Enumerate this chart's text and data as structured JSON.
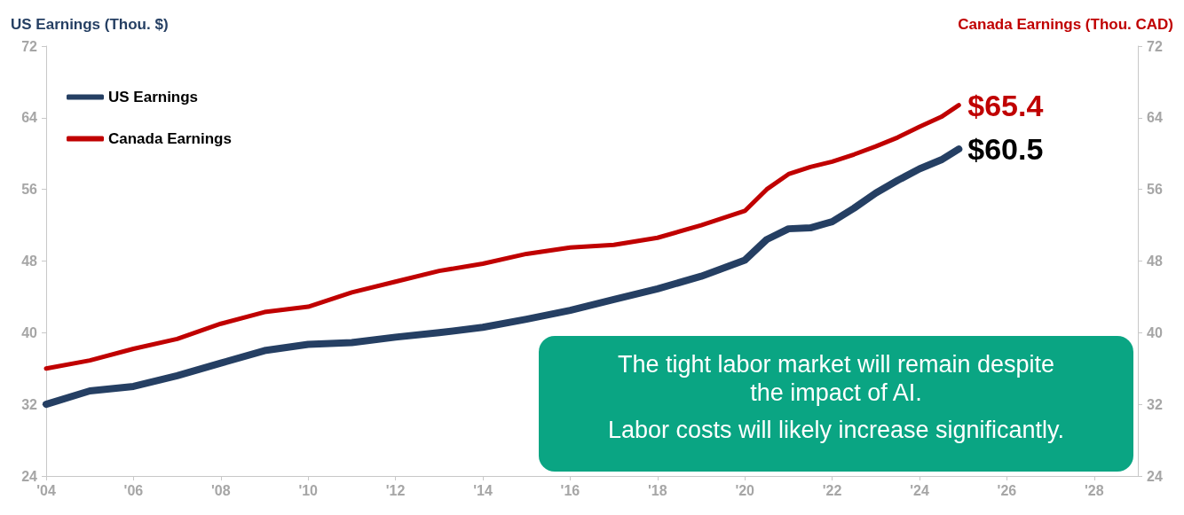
{
  "chart_data": {
    "type": "line",
    "ylabel": "US Earnings (Thou. $)",
    "y2label": "Canada Earnings (Thou. CAD)",
    "x": [
      2004,
      2005,
      2006,
      2007,
      2008,
      2009,
      2010,
      2011,
      2012,
      2013,
      2014,
      2015,
      2016,
      2017,
      2018,
      2019,
      2020,
      2020.5,
      2021,
      2021.5,
      2022,
      2022.5,
      2023,
      2023.5,
      2024,
      2024.5,
      2024.9
    ],
    "series": [
      {
        "name": "US Earnings",
        "color": "#253f63",
        "values": [
          32.0,
          33.5,
          34.0,
          35.2,
          36.6,
          38.0,
          38.7,
          38.9,
          39.5,
          40.0,
          40.6,
          41.5,
          42.5,
          43.7,
          44.9,
          46.3,
          48.1,
          50.4,
          51.6,
          51.7,
          52.4,
          53.9,
          55.6,
          57.0,
          58.3,
          59.3,
          60.5
        ],
        "value_labels": [
          null,
          null,
          null,
          null,
          null,
          null,
          null,
          null,
          null,
          null,
          null,
          null,
          null,
          null,
          null,
          null,
          null,
          null,
          null,
          null,
          null,
          null,
          null,
          null,
          null,
          null,
          "$60.5"
        ]
      },
      {
        "name": "Canada Earnings",
        "color": "#c00000",
        "axis": "y2",
        "values": [
          36.0,
          36.9,
          38.2,
          39.3,
          41.0,
          42.3,
          42.9,
          44.5,
          45.7,
          46.9,
          47.7,
          48.8,
          49.5,
          49.8,
          50.6,
          52.0,
          53.6,
          56.0,
          57.7,
          58.5,
          59.1,
          59.9,
          60.8,
          61.8,
          63.0,
          64.1,
          65.4
        ],
        "value_labels": [
          null,
          null,
          null,
          null,
          null,
          null,
          null,
          null,
          null,
          null,
          null,
          null,
          null,
          null,
          null,
          null,
          null,
          null,
          null,
          null,
          null,
          null,
          null,
          null,
          null,
          null,
          "$65.4"
        ]
      }
    ],
    "xlim": [
      2004,
      2029
    ],
    "xticks": [
      {
        "value": 2004,
        "label": "'04"
      },
      {
        "value": 2006,
        "label": "'06"
      },
      {
        "value": 2008,
        "label": "'08"
      },
      {
        "value": 2010,
        "label": "'10"
      },
      {
        "value": 2012,
        "label": "'12"
      },
      {
        "value": 2014,
        "label": "'14"
      },
      {
        "value": 2016,
        "label": "'16"
      },
      {
        "value": 2018,
        "label": "'18"
      },
      {
        "value": 2020,
        "label": "'20"
      },
      {
        "value": 2022,
        "label": "'22"
      },
      {
        "value": 2024,
        "label": "'24"
      },
      {
        "value": 2026,
        "label": "'26"
      },
      {
        "value": 2028,
        "label": "'28"
      }
    ],
    "ylim": [
      24,
      72
    ],
    "yticks": [
      24,
      32,
      40,
      48,
      56,
      64,
      72
    ],
    "y2lim": [
      24,
      72
    ],
    "y2ticks": [
      24,
      32,
      40,
      48,
      56,
      64,
      72
    ],
    "annotations": [
      "The tight labor market will remain despite the impact of AI.",
      "Labor costs will likely increase significantly."
    ],
    "legend": "top left",
    "grid": false
  }
}
